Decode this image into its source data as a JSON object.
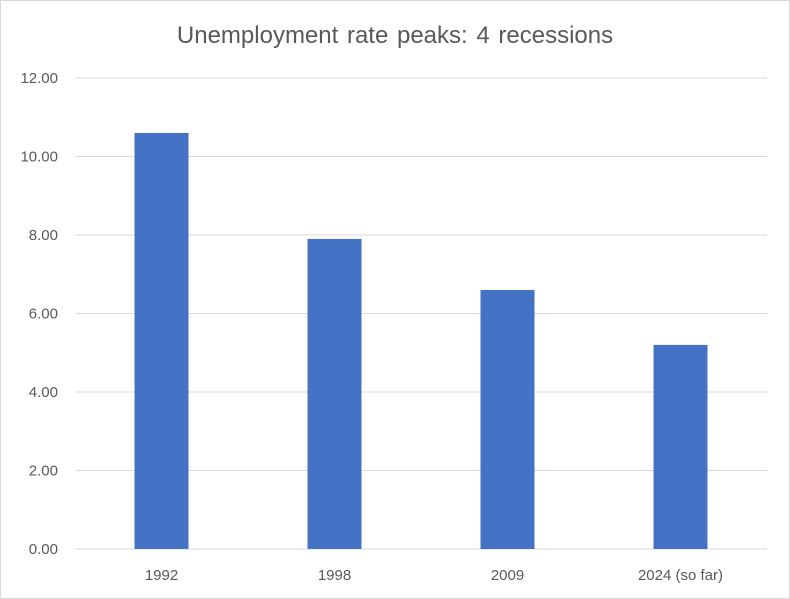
{
  "chart_data": {
    "type": "bar",
    "title": "Unemployment rate peaks: 4 recessions",
    "categories": [
      "1992",
      "1998",
      "2009",
      "2024 (so far)"
    ],
    "values": [
      10.6,
      7.9,
      6.6,
      5.2
    ],
    "ylim": [
      0,
      12
    ],
    "yticks": [
      "0.00",
      "2.00",
      "4.00",
      "6.00",
      "8.00",
      "10.00",
      "12.00"
    ],
    "xlabel": "",
    "ylabel": "",
    "grid": true,
    "legend": "none",
    "bar_color": "#4472c4",
    "gridline_color": "#d9d9d9"
  }
}
